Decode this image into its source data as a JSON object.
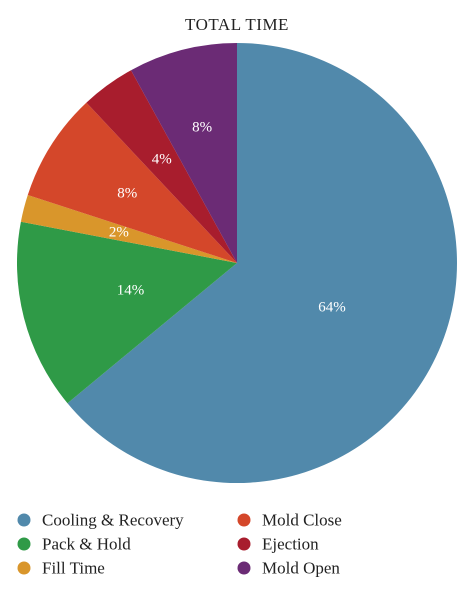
{
  "chart_data": {
    "type": "pie",
    "title": "TOTAL TIME",
    "start_angle_deg": 0,
    "direction": "clockwise",
    "legend_position": "bottom",
    "slices": [
      {
        "name": "Cooling & Recovery",
        "value": 64,
        "label": "64%",
        "color": "#5189ab"
      },
      {
        "name": "Pack & Hold",
        "value": 14,
        "label": "14%",
        "color": "#2f9a47"
      },
      {
        "name": "Fill Time",
        "value": 2,
        "label": "2%",
        "color": "#d9962b"
      },
      {
        "name": "Mold Close",
        "value": 8,
        "label": "8%",
        "color": "#d4472a"
      },
      {
        "name": "Ejection",
        "value": 4,
        "label": "4%",
        "color": "#a81d2d"
      },
      {
        "name": "Mold Open",
        "value": 8,
        "label": "8%",
        "color": "#6b2b75"
      }
    ]
  }
}
